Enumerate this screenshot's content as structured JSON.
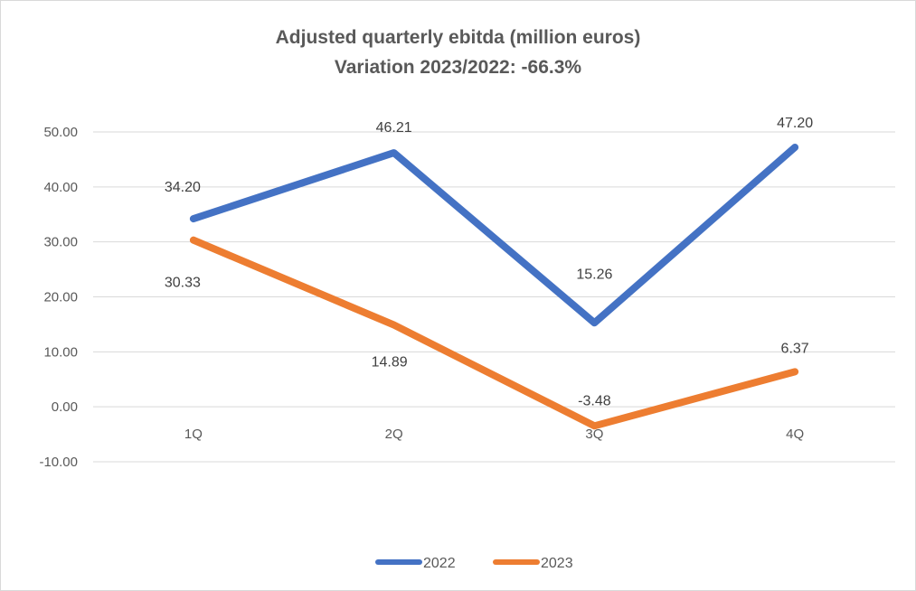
{
  "chart_data": {
    "type": "line",
    "title": "Adjusted quarterly ebitda (million euros)",
    "subtitle": "Variation 2023/2022: -66.3%",
    "categories": [
      "1Q",
      "2Q",
      "3Q",
      "4Q"
    ],
    "y_ticks": [
      "-10.00",
      "0.00",
      "10.00",
      "20.00",
      "30.00",
      "40.00",
      "50.00"
    ],
    "ylim": [
      -10,
      50
    ],
    "grid": true,
    "legend_position": "bottom",
    "series": [
      {
        "name": "2022",
        "color": "#4472c4",
        "values": [
          34.2,
          46.21,
          15.26,
          47.2
        ],
        "labels": [
          "34.20",
          "46.21",
          "15.26",
          "47.20"
        ]
      },
      {
        "name": "2023",
        "color": "#ed7d31",
        "values": [
          30.33,
          14.89,
          -3.48,
          6.37
        ],
        "labels": [
          "30.33",
          "14.89",
          "-3.48",
          "6.37"
        ]
      }
    ]
  }
}
